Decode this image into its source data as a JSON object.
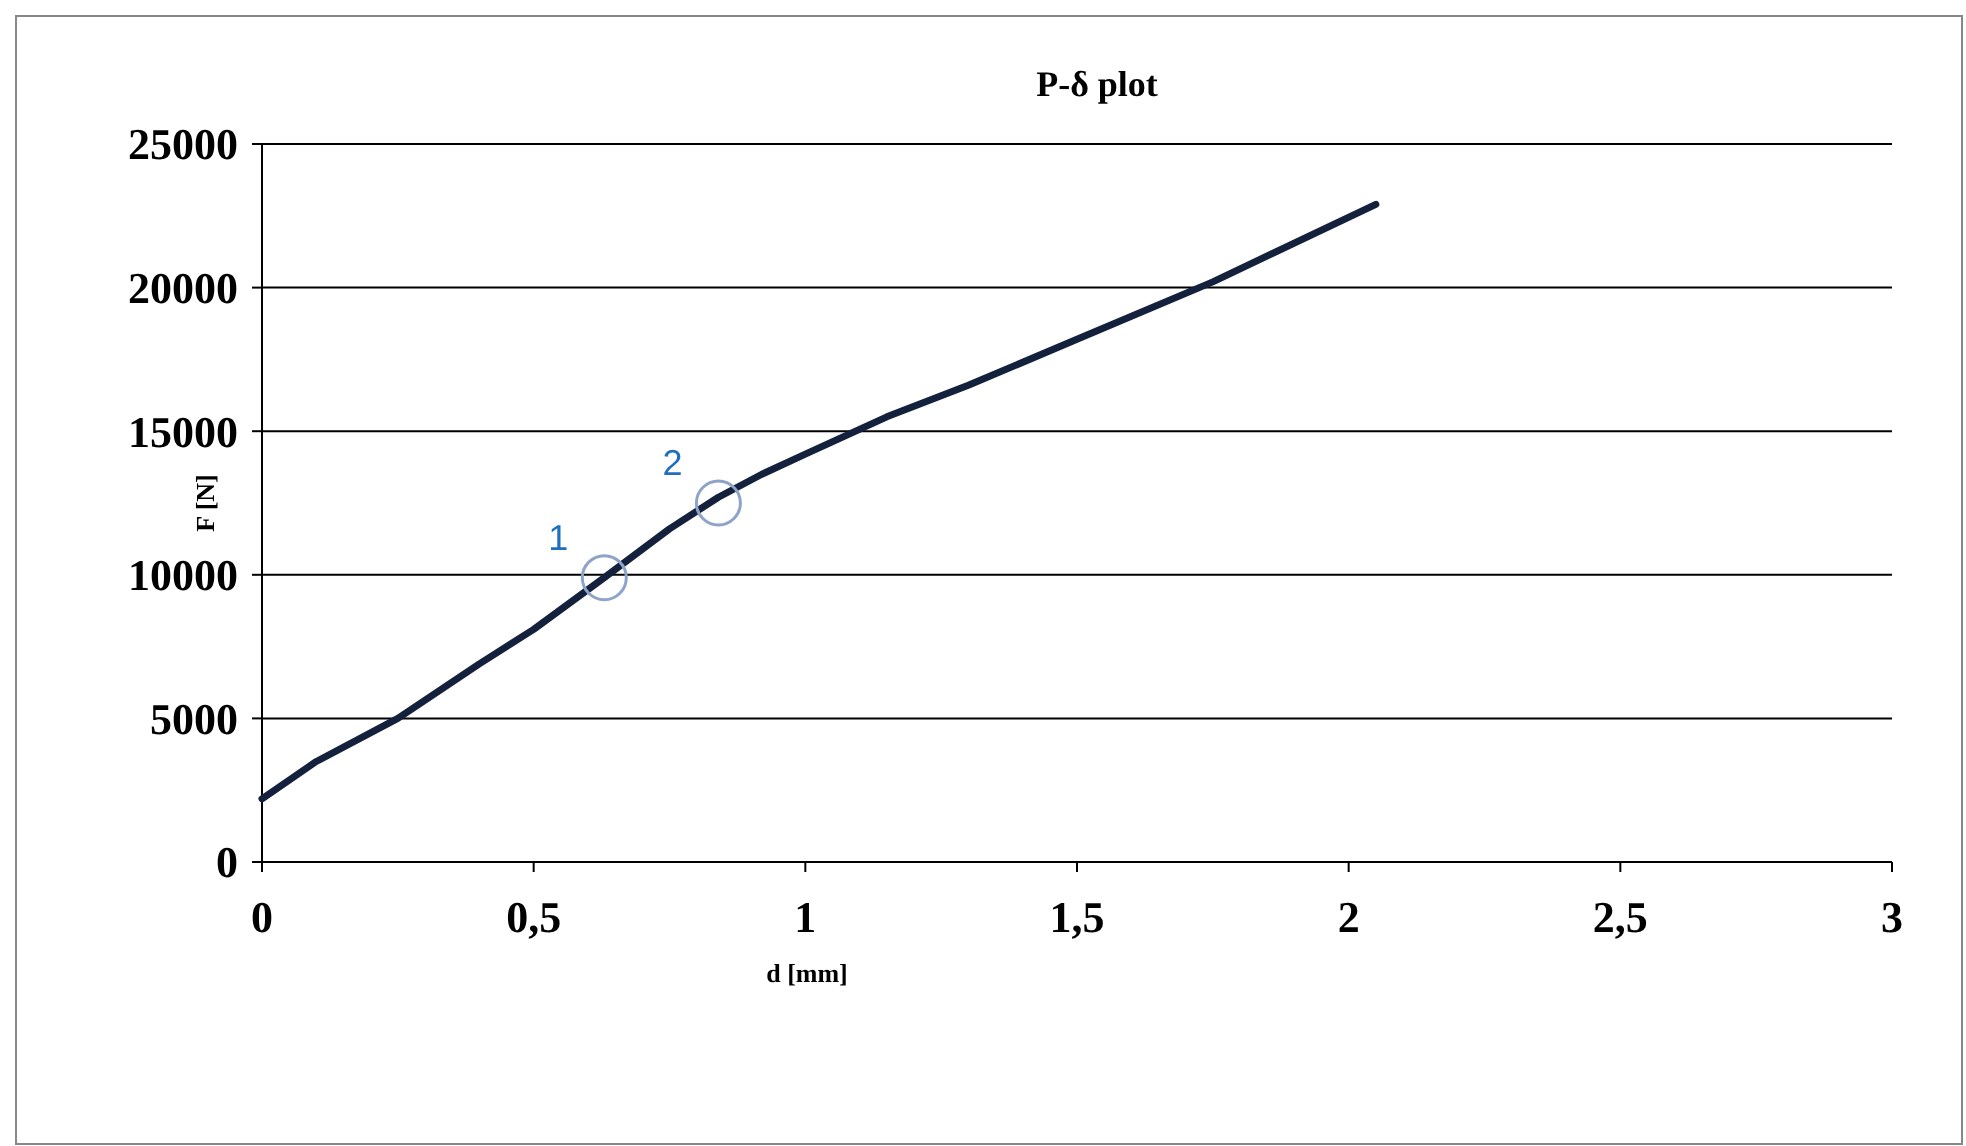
{
  "chart_data": {
    "type": "line",
    "title": "P-δ plot",
    "xlabel": "d [mm]",
    "ylabel": "F [N]",
    "x": [
      0,
      0.1,
      0.25,
      0.4,
      0.5,
      0.63,
      0.75,
      0.84,
      0.92,
      1,
      1.15,
      1.3,
      1.5,
      1.75,
      2.05
    ],
    "series": [
      {
        "color": "#14213d",
        "values": [
          2200,
          3500,
          5000,
          6900,
          8100,
          9900,
          11600,
          12700,
          13500,
          14200,
          15500,
          16600,
          18200,
          20200,
          22900
        ]
      }
    ],
    "xlim": [
      0,
      3
    ],
    "xticks": [
      0,
      {
        "value": 0.5,
        "label": "0,5"
      },
      1,
      {
        "value": 1.5,
        "label": "1,5"
      },
      2,
      {
        "value": 2.5,
        "label": "2,5"
      },
      3
    ],
    "ylim": [
      0,
      25000
    ],
    "yticks": [
      0,
      5000,
      10000,
      15000,
      20000,
      25000
    ],
    "grid": "y",
    "marker": "none",
    "line_style": "solid",
    "annotations": [
      {
        "text": "1",
        "x": 0.63,
        "y": 9900
      },
      {
        "text": "2",
        "x": 0.84,
        "y": 12500
      }
    ]
  }
}
